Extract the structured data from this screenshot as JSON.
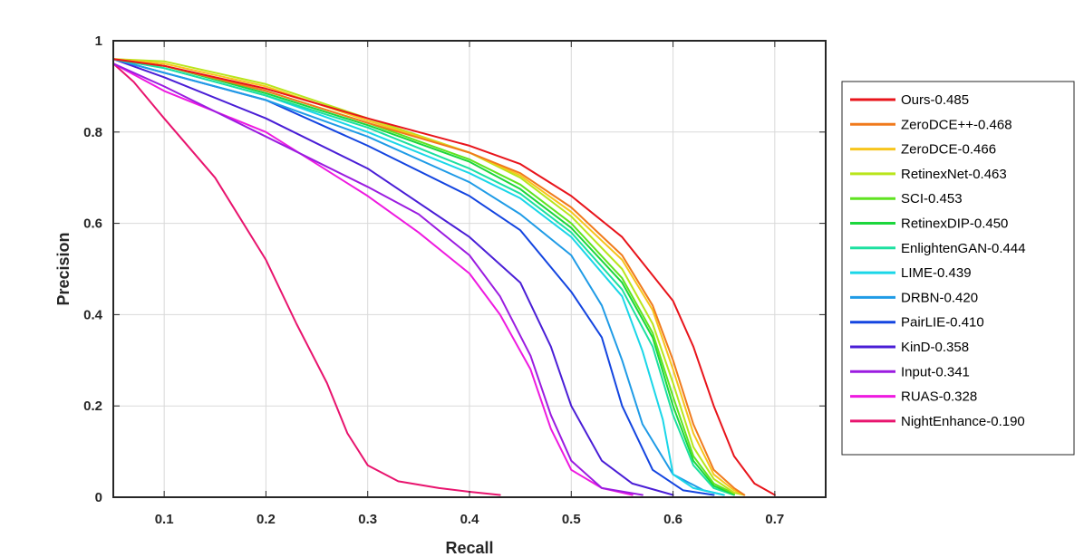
{
  "chart_data": {
    "type": "line",
    "title": "",
    "xlabel": "Recall",
    "ylabel": "Precision",
    "xlim": [
      0.05,
      0.75
    ],
    "ylim": [
      0,
      1
    ],
    "grid": true,
    "legend_position": "outside-right",
    "xticks": [
      "0.1",
      "0.2",
      "0.3",
      "0.4",
      "0.5",
      "0.6",
      "0.7"
    ],
    "yticks": [
      "0",
      "0.2",
      "0.4",
      "0.6",
      "0.8",
      "1"
    ],
    "series": [
      {
        "name": "Ours-0.485",
        "color": "#e8141b",
        "points": [
          [
            0.05,
            0.96
          ],
          [
            0.1,
            0.945
          ],
          [
            0.2,
            0.895
          ],
          [
            0.3,
            0.83
          ],
          [
            0.4,
            0.77
          ],
          [
            0.45,
            0.73
          ],
          [
            0.5,
            0.66
          ],
          [
            0.55,
            0.57
          ],
          [
            0.6,
            0.43
          ],
          [
            0.62,
            0.33
          ],
          [
            0.64,
            0.2
          ],
          [
            0.66,
            0.09
          ],
          [
            0.68,
            0.03
          ],
          [
            0.7,
            0.005
          ]
        ]
      },
      {
        "name": "ZeroDCE++-0.468",
        "color": "#f07a1c",
        "points": [
          [
            0.05,
            0.96
          ],
          [
            0.1,
            0.945
          ],
          [
            0.2,
            0.89
          ],
          [
            0.3,
            0.82
          ],
          [
            0.4,
            0.755
          ],
          [
            0.45,
            0.71
          ],
          [
            0.5,
            0.635
          ],
          [
            0.55,
            0.53
          ],
          [
            0.58,
            0.42
          ],
          [
            0.6,
            0.3
          ],
          [
            0.62,
            0.16
          ],
          [
            0.64,
            0.06
          ],
          [
            0.66,
            0.02
          ],
          [
            0.67,
            0.005
          ]
        ]
      },
      {
        "name": "ZeroDCE-0.466",
        "color": "#f7c51c",
        "points": [
          [
            0.05,
            0.96
          ],
          [
            0.1,
            0.95
          ],
          [
            0.2,
            0.9
          ],
          [
            0.3,
            0.825
          ],
          [
            0.4,
            0.755
          ],
          [
            0.45,
            0.705
          ],
          [
            0.5,
            0.625
          ],
          [
            0.55,
            0.52
          ],
          [
            0.58,
            0.41
          ],
          [
            0.6,
            0.28
          ],
          [
            0.62,
            0.14
          ],
          [
            0.64,
            0.05
          ],
          [
            0.66,
            0.015
          ],
          [
            0.67,
            0.005
          ]
        ]
      },
      {
        "name": "RetinexNet-0.463",
        "color": "#b9e51b",
        "points": [
          [
            0.05,
            0.96
          ],
          [
            0.1,
            0.955
          ],
          [
            0.2,
            0.905
          ],
          [
            0.3,
            0.83
          ],
          [
            0.4,
            0.755
          ],
          [
            0.45,
            0.7
          ],
          [
            0.5,
            0.615
          ],
          [
            0.55,
            0.5
          ],
          [
            0.58,
            0.38
          ],
          [
            0.6,
            0.25
          ],
          [
            0.62,
            0.11
          ],
          [
            0.64,
            0.04
          ],
          [
            0.66,
            0.01
          ],
          [
            0.67,
            0.005
          ]
        ]
      },
      {
        "name": "SCI-0.453",
        "color": "#5fe320",
        "points": [
          [
            0.05,
            0.96
          ],
          [
            0.1,
            0.945
          ],
          [
            0.2,
            0.89
          ],
          [
            0.3,
            0.82
          ],
          [
            0.4,
            0.74
          ],
          [
            0.45,
            0.685
          ],
          [
            0.5,
            0.6
          ],
          [
            0.55,
            0.48
          ],
          [
            0.58,
            0.36
          ],
          [
            0.6,
            0.22
          ],
          [
            0.62,
            0.09
          ],
          [
            0.64,
            0.03
          ],
          [
            0.66,
            0.008
          ]
        ]
      },
      {
        "name": "RetinexDIP-0.450",
        "color": "#1cd63c",
        "points": [
          [
            0.05,
            0.96
          ],
          [
            0.1,
            0.945
          ],
          [
            0.2,
            0.885
          ],
          [
            0.3,
            0.815
          ],
          [
            0.4,
            0.735
          ],
          [
            0.45,
            0.675
          ],
          [
            0.5,
            0.59
          ],
          [
            0.55,
            0.47
          ],
          [
            0.58,
            0.35
          ],
          [
            0.6,
            0.2
          ],
          [
            0.62,
            0.08
          ],
          [
            0.64,
            0.025
          ],
          [
            0.66,
            0.006
          ]
        ]
      },
      {
        "name": "EnlightenGAN-0.444",
        "color": "#1ce0a0",
        "points": [
          [
            0.05,
            0.96
          ],
          [
            0.1,
            0.94
          ],
          [
            0.2,
            0.88
          ],
          [
            0.3,
            0.81
          ],
          [
            0.4,
            0.72
          ],
          [
            0.45,
            0.665
          ],
          [
            0.5,
            0.58
          ],
          [
            0.55,
            0.455
          ],
          [
            0.58,
            0.33
          ],
          [
            0.6,
            0.18
          ],
          [
            0.62,
            0.07
          ],
          [
            0.64,
            0.02
          ],
          [
            0.66,
            0.005
          ]
        ]
      },
      {
        "name": "LIME-0.439",
        "color": "#1ad6e8",
        "points": [
          [
            0.05,
            0.96
          ],
          [
            0.1,
            0.94
          ],
          [
            0.2,
            0.88
          ],
          [
            0.3,
            0.8
          ],
          [
            0.4,
            0.71
          ],
          [
            0.45,
            0.655
          ],
          [
            0.5,
            0.57
          ],
          [
            0.55,
            0.44
          ],
          [
            0.57,
            0.32
          ],
          [
            0.59,
            0.17
          ],
          [
            0.6,
            0.05
          ],
          [
            0.62,
            0.02
          ],
          [
            0.65,
            0.005
          ]
        ]
      },
      {
        "name": "DRBN-0.420",
        "color": "#1f9be6",
        "points": [
          [
            0.05,
            0.96
          ],
          [
            0.1,
            0.93
          ],
          [
            0.2,
            0.87
          ],
          [
            0.3,
            0.79
          ],
          [
            0.4,
            0.69
          ],
          [
            0.45,
            0.62
          ],
          [
            0.5,
            0.53
          ],
          [
            0.53,
            0.42
          ],
          [
            0.55,
            0.3
          ],
          [
            0.57,
            0.16
          ],
          [
            0.6,
            0.05
          ],
          [
            0.63,
            0.015
          ],
          [
            0.65,
            0.005
          ]
        ]
      },
      {
        "name": "PairLIE-0.410",
        "color": "#1445e0",
        "points": [
          [
            0.05,
            0.96
          ],
          [
            0.1,
            0.93
          ],
          [
            0.2,
            0.87
          ],
          [
            0.3,
            0.77
          ],
          [
            0.4,
            0.66
          ],
          [
            0.45,
            0.585
          ],
          [
            0.5,
            0.45
          ],
          [
            0.53,
            0.35
          ],
          [
            0.55,
            0.2
          ],
          [
            0.58,
            0.06
          ],
          [
            0.61,
            0.015
          ],
          [
            0.64,
            0.005
          ]
        ]
      },
      {
        "name": "KinD-0.358",
        "color": "#4a1ed6",
        "points": [
          [
            0.05,
            0.96
          ],
          [
            0.1,
            0.92
          ],
          [
            0.2,
            0.83
          ],
          [
            0.3,
            0.72
          ],
          [
            0.4,
            0.57
          ],
          [
            0.45,
            0.47
          ],
          [
            0.48,
            0.33
          ],
          [
            0.5,
            0.2
          ],
          [
            0.53,
            0.08
          ],
          [
            0.56,
            0.03
          ],
          [
            0.6,
            0.005
          ]
        ]
      },
      {
        "name": "Input-0.341",
        "color": "#9b1ce0",
        "points": [
          [
            0.05,
            0.95
          ],
          [
            0.1,
            0.9
          ],
          [
            0.2,
            0.79
          ],
          [
            0.3,
            0.68
          ],
          [
            0.35,
            0.62
          ],
          [
            0.4,
            0.53
          ],
          [
            0.43,
            0.44
          ],
          [
            0.46,
            0.31
          ],
          [
            0.48,
            0.18
          ],
          [
            0.5,
            0.08
          ],
          [
            0.53,
            0.02
          ],
          [
            0.57,
            0.005
          ]
        ]
      },
      {
        "name": "RUAS-0.328",
        "color": "#ee1ae0",
        "points": [
          [
            0.05,
            0.95
          ],
          [
            0.1,
            0.89
          ],
          [
            0.2,
            0.8
          ],
          [
            0.3,
            0.66
          ],
          [
            0.35,
            0.58
          ],
          [
            0.4,
            0.49
          ],
          [
            0.43,
            0.4
          ],
          [
            0.46,
            0.28
          ],
          [
            0.48,
            0.15
          ],
          [
            0.5,
            0.06
          ],
          [
            0.53,
            0.02
          ],
          [
            0.56,
            0.005
          ]
        ]
      },
      {
        "name": "NightEnhance-0.190",
        "color": "#e8146e",
        "points": [
          [
            0.05,
            0.95
          ],
          [
            0.07,
            0.91
          ],
          [
            0.1,
            0.83
          ],
          [
            0.15,
            0.7
          ],
          [
            0.2,
            0.52
          ],
          [
            0.23,
            0.38
          ],
          [
            0.26,
            0.25
          ],
          [
            0.28,
            0.14
          ],
          [
            0.3,
            0.07
          ],
          [
            0.33,
            0.035
          ],
          [
            0.37,
            0.02
          ],
          [
            0.4,
            0.012
          ],
          [
            0.43,
            0.005
          ]
        ]
      }
    ]
  }
}
